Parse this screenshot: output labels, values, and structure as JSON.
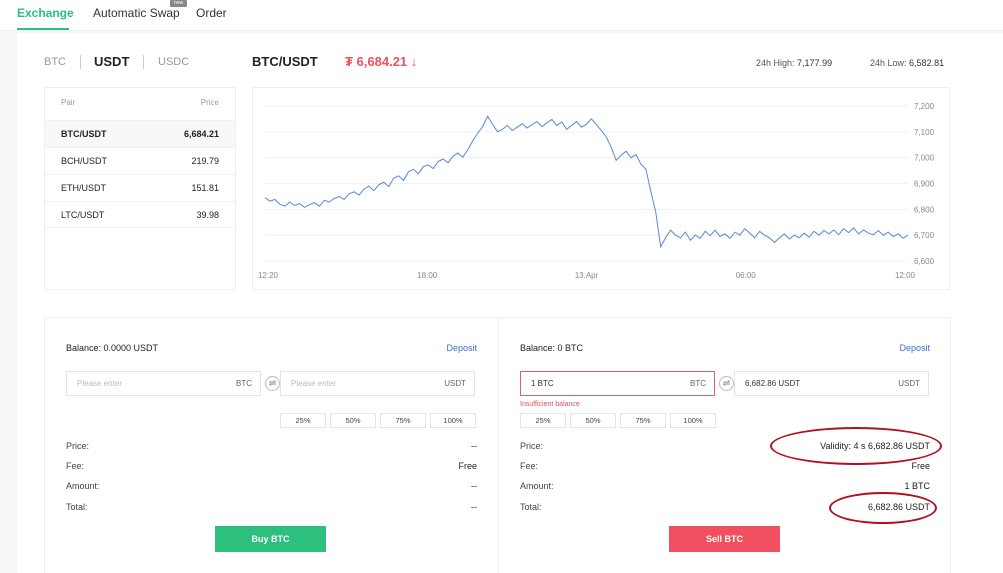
{
  "nav": {
    "exchange": "Exchange",
    "auto_swap": "Automatic Swap",
    "order": "Order",
    "badge": "new"
  },
  "quote_tabs": [
    "BTC",
    "USDT",
    "USDC"
  ],
  "header": {
    "pair": "BTC/USDT",
    "last_price": "₮ 6,684.21 ↓",
    "high_label": "24h High:",
    "high_value": "7,177.99",
    "low_label": "24h Low:",
    "low_value": "6,582.81"
  },
  "pairs": {
    "col_pair": "Pair",
    "col_price": "Price",
    "rows": [
      {
        "pair": "BTC/USDT",
        "price": "6,684.21"
      },
      {
        "pair": "BCH/USDT",
        "price": "219.79"
      },
      {
        "pair": "ETH/USDT",
        "price": "151.81"
      },
      {
        "pair": "LTC/USDT",
        "price": "39.98"
      }
    ]
  },
  "chart_data": {
    "type": "line",
    "x_tick_labels": [
      "12:20",
      "18:00",
      "13.Apr",
      "06:00",
      "12:00"
    ],
    "y_ticks": [
      6600,
      6700,
      6800,
      6900,
      7000,
      7100,
      7200
    ],
    "y_tick_labels": [
      "6,600",
      "6,700",
      "6,800",
      "6,900",
      "7,000",
      "7,100",
      "7,200"
    ],
    "ylim": [
      6600,
      7200
    ],
    "line_color": "#5b86d6",
    "series": [
      {
        "values": [
          6845,
          6832,
          6838,
          6820,
          6812,
          6828,
          6815,
          6822,
          6808,
          6818,
          6826,
          6812,
          6835,
          6828,
          6842,
          6850,
          6838,
          6860,
          6868,
          6855,
          6878,
          6890,
          6872,
          6895,
          6905,
          6888,
          6920,
          6930,
          6912,
          6945,
          6955,
          6938,
          6965,
          6972,
          6958,
          6985,
          6995,
          6980,
          7005,
          7018,
          7002,
          7030,
          7065,
          7095,
          7120,
          7160,
          7130,
          7100,
          7110,
          7125,
          7105,
          7118,
          7132,
          7115,
          7128,
          7140,
          7120,
          7135,
          7148,
          7125,
          7138,
          7110,
          7125,
          7140,
          7118,
          7130,
          7150,
          7128,
          7105,
          7080,
          7040,
          6990,
          7010,
          7025,
          7000,
          7012,
          6975,
          6955,
          6870,
          6790,
          6655,
          6690,
          6720,
          6700,
          6690,
          6712,
          6680,
          6700,
          6688,
          6715,
          6698,
          6720,
          6695,
          6705,
          6688,
          6712,
          6700,
          6725,
          6708,
          6690,
          6715,
          6700,
          6690,
          6672,
          6690,
          6705,
          6685,
          6700,
          6690,
          6708,
          6692,
          6715,
          6700,
          6718,
          6705,
          6720,
          6702,
          6725,
          6710,
          6728,
          6705,
          6720,
          6708,
          6702,
          6718,
          6700,
          6712,
          6695,
          6705,
          6688,
          6700
        ]
      }
    ]
  },
  "buy": {
    "balance": "Balance: 0.0000 USDT",
    "deposit": "Deposit",
    "amount_placeholder": "Please enter",
    "amount_unit": "BTC",
    "total_placeholder": "Please enter",
    "total_unit": "USDT",
    "pcts": [
      "25%",
      "50%",
      "75%",
      "100%"
    ],
    "price_label": "Price:",
    "price_value": "--",
    "fee_label": "Fee:",
    "fee_value": "Free",
    "amount_label": "Amount:",
    "amount_value": "--",
    "total_label": "Total:",
    "total_value": "--",
    "button": "Buy BTC"
  },
  "sell": {
    "balance": "Balance: 0 BTC",
    "deposit": "Deposit",
    "amount_value": "1 BTC",
    "amount_unit": "BTC",
    "total_value": "6,682.86 USDT",
    "total_unit": "USDT",
    "error": "Insufficient balance",
    "pcts": [
      "25%",
      "50%",
      "75%",
      "100%"
    ],
    "price_label": "Price:",
    "price_value": "Validity:  4 s  6,682.86 USDT",
    "fee_label": "Fee:",
    "fee_value": "Free",
    "amount_label": "Amount:",
    "total_label": "Total:",
    "button": "Sell BTC"
  },
  "colors": {
    "accent_green": "#2dbf7e",
    "sell_red": "#f0505f",
    "link_blue": "#3a6fc9",
    "annotation_red": "#b01020"
  }
}
